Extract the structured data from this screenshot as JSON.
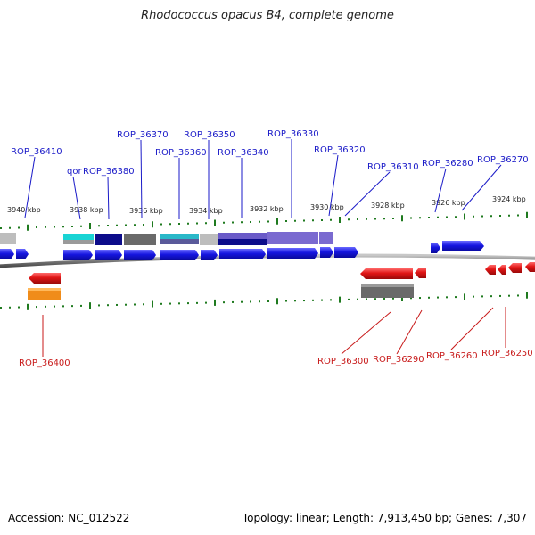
{
  "title": "Rhodococcus opacus B4, complete genome",
  "footer": {
    "accession": "Accession: NC_012522",
    "summary": "Topology: linear; Length: 7,913,450 bp; Genes: 7,307"
  },
  "colors": {
    "forward": "#1515e0",
    "reverse": "#e01515",
    "forward_label": "#1a1ac8",
    "reverse_label": "#c81a1a",
    "ticks": "#1f7a1f",
    "backbone": "#8a8a8a"
  },
  "ruler_labels": [
    "3940 kbp",
    "3938 kbp",
    "3936 kbp",
    "3934 kbp",
    "3932 kbp",
    "3930 kbp",
    "3928 kbp",
    "3926 kbp",
    "3924 kbp"
  ],
  "forward_gene_labels": [
    "ROP_36410",
    "qor",
    "ROP_36380",
    "ROP_36370",
    "ROP_36360",
    "ROP_36350",
    "ROP_36340",
    "ROP_36330",
    "ROP_36320",
    "ROP_36310",
    "ROP_36280",
    "ROP_36270"
  ],
  "reverse_gene_labels": [
    "ROP_36400",
    "ROP_36300",
    "ROP_36290",
    "ROP_36260",
    "ROP_36250"
  ]
}
